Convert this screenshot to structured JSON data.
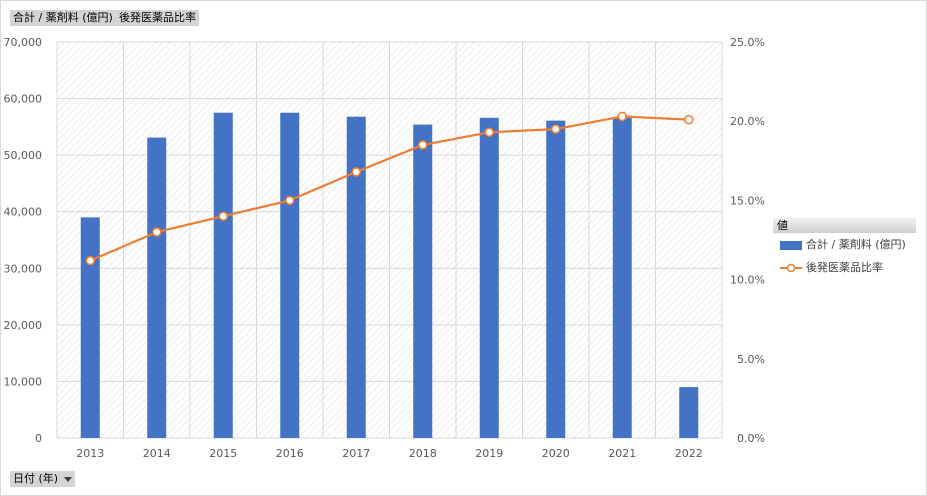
{
  "field_buttons": {
    "values_label": "合計 / 薬剤料 (億円)",
    "ratio_label": "後発医薬品比率",
    "axis_field_label": "日付 (年)"
  },
  "legend": {
    "title": "値",
    "items": [
      {
        "label": "合計 / 薬剤料 (億円)"
      },
      {
        "label": "後発医薬品比率"
      }
    ]
  },
  "colors": {
    "bar": "#4472c4",
    "line": "#ed7d31",
    "grid": "#d9d9d9",
    "axis_text": "#595959"
  },
  "chart_data": {
    "type": "bar",
    "categories": [
      "2013",
      "2014",
      "2015",
      "2016",
      "2017",
      "2018",
      "2019",
      "2020",
      "2021",
      "2022"
    ],
    "series": [
      {
        "name": "合計 / 薬剤料 (億円)",
        "type": "bar",
        "axis": "left",
        "values": [
          39000,
          53100,
          57500,
          57500,
          56800,
          55400,
          56600,
          56100,
          56600,
          9000
        ]
      },
      {
        "name": "後発医薬品比率",
        "type": "line",
        "axis": "right",
        "values": [
          0.112,
          0.13,
          0.14,
          0.15,
          0.168,
          0.185,
          0.193,
          0.195,
          0.203,
          0.201
        ]
      }
    ],
    "y_left": {
      "min": 0,
      "max": 70000,
      "ticks": [
        "0",
        "10,000",
        "20,000",
        "30,000",
        "40,000",
        "50,000",
        "60,000",
        "70,000"
      ]
    },
    "y_right": {
      "min": 0,
      "max": 0.25,
      "ticks": [
        "0.0%",
        "5.0%",
        "10.0%",
        "15.0%",
        "20.0%",
        "25.0%"
      ]
    },
    "grid": true,
    "legend_position": "right"
  }
}
